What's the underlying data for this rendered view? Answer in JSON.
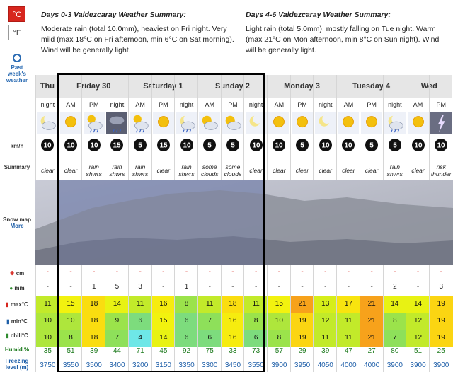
{
  "units": {
    "celsius": "°C",
    "fahrenheit": "°F"
  },
  "past_link": [
    "Past",
    "week's",
    "weather"
  ],
  "summary_left": {
    "title": "Days 0-3 Valdezcaray Weather Summary:",
    "body": "Moderate rain (total 10.0mm), heaviest on Fri night. Very mild (max 18°C on Fri afternoon, min 6°C on Sat morning). Wind will be generally light."
  },
  "summary_right": {
    "title": "Days 4-6 Valdezcaray Weather Summary:",
    "body": "Light rain (total 5.0mm), mostly falling on Tue night. Warm (max 21°C on Mon afternoon, min 8°C on Sun night). Wind will be generally light."
  },
  "row_labels": {
    "wind": "km/h",
    "summary": "Summary",
    "snowmap": "Snow map",
    "more": "More",
    "snow": "cm",
    "rain": "mm",
    "max": "max°C",
    "min": "min°C",
    "chill": "chill°C",
    "humid": "Humid.%",
    "freezing": "Freezing level (m)"
  },
  "days": [
    "Thu",
    "Friday 30",
    "Saturday 1",
    "Sunday 2",
    "Monday 3",
    "Tuesday 4",
    "Wed"
  ],
  "periods": [
    {
      "tod": "night",
      "icon": "moon-cloud",
      "wind": "10",
      "summary": "clear",
      "snow": "-",
      "rain": "-",
      "max": "11",
      "min": "10",
      "chill": "10",
      "humid": "35",
      "freeze": "3750"
    },
    {
      "tod": "AM",
      "icon": "sun",
      "wind": "10",
      "summary": "clear",
      "snow": "-",
      "rain": "-",
      "max": "15",
      "min": "10",
      "chill": "8",
      "humid": "51",
      "freeze": "3550"
    },
    {
      "tod": "PM",
      "icon": "cloud-rain",
      "wind": "10",
      "summary": "rain shwrs",
      "snow": "-",
      "rain": "1",
      "max": "18",
      "min": "18",
      "chill": "18",
      "humid": "39",
      "freeze": "3500"
    },
    {
      "tod": "night",
      "icon": "storm",
      "wind": "15",
      "summary": "rain shwrs",
      "snow": "-",
      "rain": "5",
      "max": "14",
      "min": "9",
      "chill": "7",
      "humid": "44",
      "freeze": "3400"
    },
    {
      "tod": "AM",
      "icon": "cloud-rain",
      "wind": "5",
      "summary": "rain shwrs",
      "snow": "-",
      "rain": "3",
      "max": "11",
      "min": "6",
      "chill": "4",
      "humid": "71",
      "freeze": "3200"
    },
    {
      "tod": "PM",
      "icon": "sun",
      "wind": "15",
      "summary": "clear",
      "snow": "-",
      "rain": "-",
      "max": "16",
      "min": "15",
      "chill": "14",
      "humid": "45",
      "freeze": "3150"
    },
    {
      "tod": "night",
      "icon": "moon-rain",
      "wind": "10",
      "summary": "rain shwrs",
      "snow": "-",
      "rain": "1",
      "max": "8",
      "min": "6",
      "chill": "6",
      "humid": "92",
      "freeze": "3350"
    },
    {
      "tod": "AM",
      "icon": "sun-cloud",
      "wind": "5",
      "summary": "some clouds",
      "snow": "-",
      "rain": "-",
      "max": "11",
      "min": "7",
      "chill": "6",
      "humid": "75",
      "freeze": "3300"
    },
    {
      "tod": "PM",
      "icon": "sun-cloud",
      "wind": "5",
      "summary": "some clouds",
      "snow": "-",
      "rain": "-",
      "max": "18",
      "min": "16",
      "chill": "16",
      "humid": "33",
      "freeze": "3450"
    },
    {
      "tod": "night",
      "icon": "moon",
      "wind": "10",
      "summary": "clear",
      "snow": "-",
      "rain": "-",
      "max": "11",
      "min": "8",
      "chill": "6",
      "humid": "73",
      "freeze": "3550"
    },
    {
      "tod": "AM",
      "icon": "sun",
      "wind": "10",
      "summary": "clear",
      "snow": "-",
      "rain": "-",
      "max": "15",
      "min": "10",
      "chill": "8",
      "humid": "57",
      "freeze": "3900"
    },
    {
      "tod": "PM",
      "icon": "sun",
      "wind": "5",
      "summary": "clear",
      "snow": "-",
      "rain": "-",
      "max": "21",
      "min": "19",
      "chill": "19",
      "humid": "29",
      "freeze": "3950"
    },
    {
      "tod": "night",
      "icon": "moon",
      "wind": "10",
      "summary": "clear",
      "snow": "-",
      "rain": "-",
      "max": "13",
      "min": "12",
      "chill": "11",
      "humid": "39",
      "freeze": "4050"
    },
    {
      "tod": "AM",
      "icon": "sun",
      "wind": "10",
      "summary": "clear",
      "snow": "-",
      "rain": "-",
      "max": "17",
      "min": "11",
      "chill": "11",
      "humid": "47",
      "freeze": "4000"
    },
    {
      "tod": "PM",
      "icon": "sun",
      "wind": "5",
      "summary": "clear",
      "snow": "-",
      "rain": "-",
      "max": "21",
      "min": "21",
      "chill": "21",
      "humid": "27",
      "freeze": "4000"
    },
    {
      "tod": "night",
      "icon": "moon-rain",
      "wind": "5",
      "summary": "rain shwrs",
      "snow": "-",
      "rain": "2",
      "max": "14",
      "min": "8",
      "chill": "7",
      "humid": "80",
      "freeze": "3900"
    },
    {
      "tod": "AM",
      "icon": "sun",
      "wind": "10",
      "summary": "clear",
      "snow": "-",
      "rain": "-",
      "max": "14",
      "min": "12",
      "chill": "12",
      "humid": "51",
      "freeze": "3900"
    },
    {
      "tod": "PM",
      "icon": "lightning",
      "wind": "10",
      "summary": "risk thunder",
      "snow": "-",
      "rain": "3",
      "max": "19",
      "min": "19",
      "chill": "19",
      "humid": "25",
      "freeze": "3900"
    }
  ],
  "temp_colors": {
    "4": "#6ee7e7",
    "6": "#7ddc7d",
    "7": "#8ee05a",
    "8": "#9be34b",
    "9": "#9be34b",
    "10": "#aee63c",
    "11": "#c2ea2a",
    "12": "#c2ea2a",
    "13": "#d6ee1a",
    "14": "#e8f213",
    "15": "#f2f20f",
    "16": "#f6ec0f",
    "17": "#f8e40f",
    "18": "#fadd10",
    "19": "#fbd512",
    "21": "#f7a21b"
  }
}
